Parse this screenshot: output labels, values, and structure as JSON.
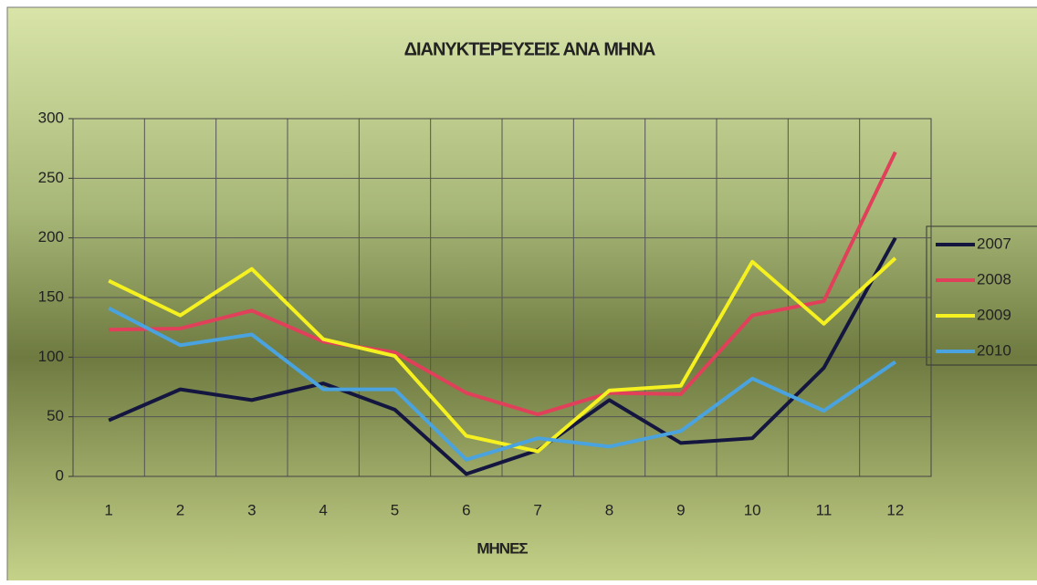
{
  "chart_data": {
    "type": "line",
    "title": "ΔΙΑΝΥΚΤΕΡΕΥΣΕΙΣ ΑΝΑ ΜΗΝΑ",
    "x_label": "ΜΗΝΕΣ",
    "categories": [
      "1",
      "2",
      "3",
      "4",
      "5",
      "6",
      "7",
      "8",
      "9",
      "10",
      "11",
      "12"
    ],
    "series": [
      {
        "name": "2007",
        "color": "#14163f",
        "values": [
          47,
          73,
          64,
          78,
          56,
          2,
          22,
          64,
          28,
          32,
          91,
          200
        ]
      },
      {
        "name": "2008",
        "color": "#e0405a",
        "values": [
          123,
          124,
          139,
          113,
          104,
          70,
          52,
          70,
          69,
          135,
          147,
          272
        ]
      },
      {
        "name": "2009",
        "color": "#f5f020",
        "values": [
          164,
          135,
          174,
          115,
          101,
          34,
          21,
          72,
          76,
          180,
          128,
          183
        ]
      },
      {
        "name": "2010",
        "color": "#4aa3de",
        "values": [
          141,
          110,
          119,
          73,
          73,
          14,
          32,
          25,
          38,
          82,
          55,
          96
        ]
      }
    ],
    "ylim": [
      0,
      300
    ],
    "yticks": [
      0,
      50,
      100,
      150,
      200,
      250,
      300
    ],
    "grid": true,
    "legend": "right"
  }
}
